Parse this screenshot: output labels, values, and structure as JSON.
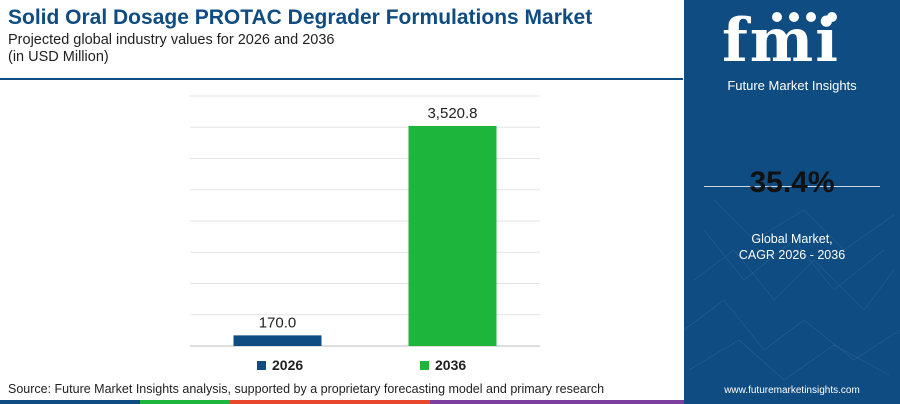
{
  "header": {
    "title": "Solid Oral Dosage PROTAC Degrader Formulations Market",
    "subtitle_line1": "Projected global industry values for 2026 and 2036",
    "subtitle_line2": "(in USD Million)"
  },
  "chart_data": {
    "type": "bar",
    "categories": [
      "2026",
      "2036"
    ],
    "values": [
      170.0,
      3520.8
    ],
    "value_labels": [
      "170.0",
      "3,520.8"
    ],
    "colors": [
      "#0f4c81",
      "#1db53c"
    ],
    "ylim": [
      0,
      4000
    ],
    "grid": true,
    "legend": "bottom"
  },
  "legend": [
    {
      "label": "2026",
      "color": "#0f4c81"
    },
    {
      "label": "2036",
      "color": "#1db53c"
    }
  ],
  "source": "Source: Future Market Insights analysis, supported by a proprietary forecasting model and primary research",
  "panel": {
    "logo_letters": "fmi",
    "logo_text": "Future Market Insights",
    "cagr_value": "35.4%",
    "cagr_label_line1": "Global Market,",
    "cagr_label_line2": "CAGR 2026 - 2036",
    "website": "www.futuremarketinsights.com",
    "background": "#0f4c81"
  },
  "bottom_bar_colors": [
    "#0f4c81",
    "#1db53c",
    "#e8472b",
    "#7b3fa0",
    "#0f4c81"
  ]
}
